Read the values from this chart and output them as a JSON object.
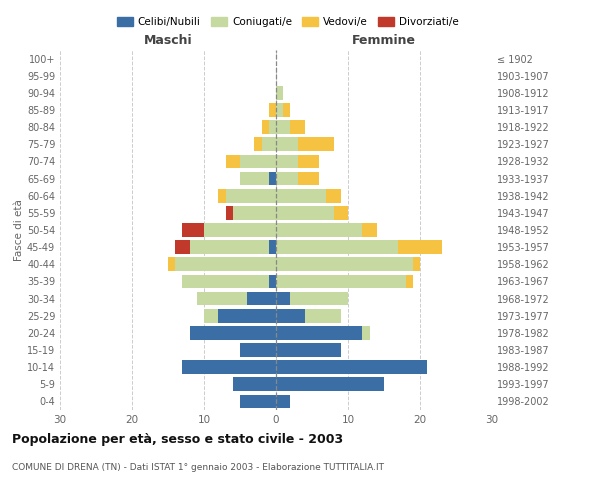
{
  "age_groups": [
    "0-4",
    "5-9",
    "10-14",
    "15-19",
    "20-24",
    "25-29",
    "30-34",
    "35-39",
    "40-44",
    "45-49",
    "50-54",
    "55-59",
    "60-64",
    "65-69",
    "70-74",
    "75-79",
    "80-84",
    "85-89",
    "90-94",
    "95-99",
    "100+"
  ],
  "birth_years": [
    "1998-2002",
    "1993-1997",
    "1988-1992",
    "1983-1987",
    "1978-1982",
    "1973-1977",
    "1968-1972",
    "1963-1967",
    "1958-1962",
    "1953-1957",
    "1948-1952",
    "1943-1947",
    "1938-1942",
    "1933-1937",
    "1928-1932",
    "1923-1927",
    "1918-1922",
    "1913-1917",
    "1908-1912",
    "1903-1907",
    "≤ 1902"
  ],
  "male": {
    "celibi": [
      5,
      6,
      13,
      5,
      12,
      8,
      4,
      1,
      0,
      1,
      0,
      0,
      0,
      1,
      0,
      0,
      0,
      0,
      0,
      0,
      0
    ],
    "coniugati": [
      0,
      0,
      0,
      0,
      0,
      2,
      7,
      12,
      14,
      11,
      10,
      6,
      7,
      4,
      5,
      2,
      1,
      0,
      0,
      0,
      0
    ],
    "vedovi": [
      0,
      0,
      0,
      0,
      0,
      0,
      0,
      0,
      1,
      0,
      0,
      0,
      1,
      0,
      2,
      1,
      1,
      1,
      0,
      0,
      0
    ],
    "divorziati": [
      0,
      0,
      0,
      0,
      0,
      0,
      0,
      0,
      0,
      2,
      3,
      1,
      0,
      0,
      0,
      0,
      0,
      0,
      0,
      0,
      0
    ]
  },
  "female": {
    "nubili": [
      2,
      15,
      21,
      9,
      12,
      4,
      2,
      0,
      0,
      0,
      0,
      0,
      0,
      0,
      0,
      0,
      0,
      0,
      0,
      0,
      0
    ],
    "coniugate": [
      0,
      0,
      0,
      0,
      1,
      5,
      8,
      18,
      19,
      17,
      12,
      8,
      7,
      3,
      3,
      3,
      2,
      1,
      1,
      0,
      0
    ],
    "vedove": [
      0,
      0,
      0,
      0,
      0,
      0,
      0,
      1,
      1,
      6,
      2,
      2,
      2,
      3,
      3,
      5,
      2,
      1,
      0,
      0,
      0
    ],
    "divorziate": [
      0,
      0,
      0,
      0,
      0,
      0,
      0,
      0,
      0,
      0,
      0,
      0,
      0,
      0,
      0,
      0,
      0,
      0,
      0,
      0,
      0
    ]
  },
  "colors": {
    "celibi": "#3a6ea5",
    "coniugati": "#c5d9a0",
    "vedovi": "#f5c242",
    "divorziati": "#c0392b"
  },
  "xlim": 30,
  "title": "Popolazione per età, sesso e stato civile - 2003",
  "subtitle": "COMUNE DI DRENA (TN) - Dati ISTAT 1° gennaio 2003 - Elaborazione TUTTITALIA.IT",
  "ylabel_left": "Fasce di età",
  "xlabel_left": "Maschi",
  "xlabel_right": "Femmine",
  "legend_labels": [
    "Celibi/Nubili",
    "Coniugati/e",
    "Vedovi/e",
    "Divorziati/e"
  ],
  "background_color": "#ffffff"
}
